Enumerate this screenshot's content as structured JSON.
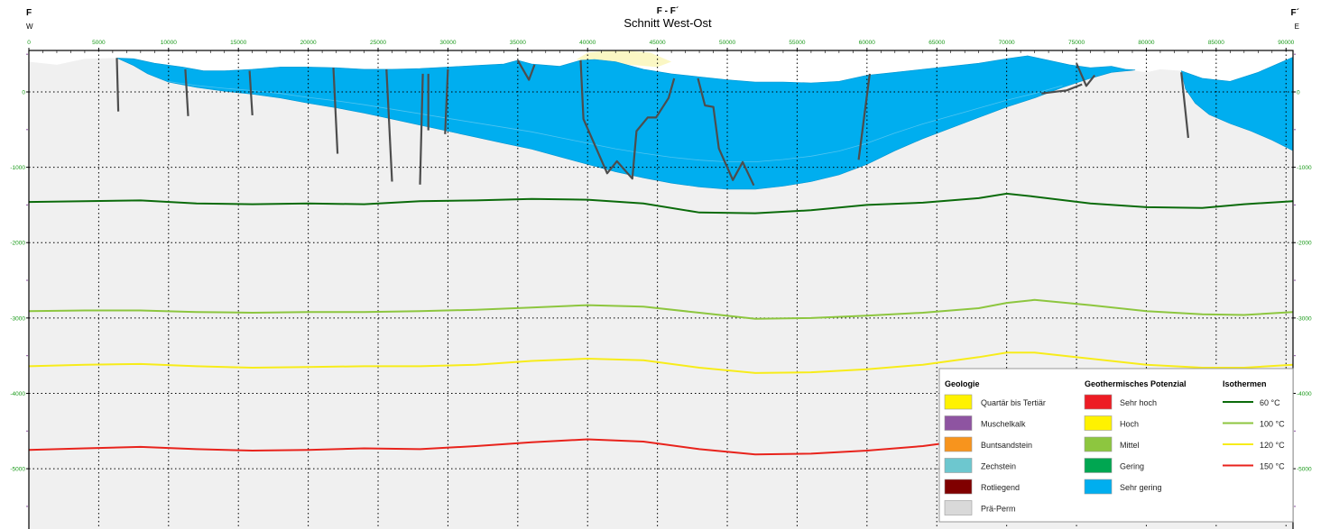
{
  "header": {
    "section_code": "F - F´",
    "title": "Schnitt West-Ost",
    "left_label": "F",
    "left_dir": "W",
    "right_label": "F´",
    "right_dir": "E"
  },
  "axes": {
    "x_ticks": [
      0,
      5000,
      10000,
      15000,
      20000,
      25000,
      30000,
      35000,
      40000,
      45000,
      50000,
      55000,
      60000,
      65000,
      70000,
      75000,
      80000,
      85000,
      90000
    ],
    "y_ticks": [
      0,
      -1000,
      -2000,
      -3000,
      -4000,
      -5000
    ],
    "xlim": [
      0,
      90500
    ],
    "ylim": [
      -5800,
      550
    ]
  },
  "colors": {
    "pre_perm": "#f0f0f0",
    "sehr_gering": "#00aeef",
    "hoch_patch": "#fbf7c4",
    "fault": "#4d4d4d",
    "tick_axis": "#1a9a1a",
    "grid": "#000000"
  },
  "profile": {
    "surface": [
      [
        0,
        400
      ],
      [
        2000,
        360
      ],
      [
        4000,
        440
      ],
      [
        6300,
        450
      ],
      [
        7500,
        440
      ],
      [
        9000,
        380
      ],
      [
        11000,
        330
      ],
      [
        12500,
        280
      ],
      [
        14000,
        280
      ],
      [
        16000,
        300
      ],
      [
        18000,
        330
      ],
      [
        20000,
        330
      ],
      [
        22000,
        320
      ],
      [
        24000,
        300
      ],
      [
        26000,
        300
      ],
      [
        28000,
        310
      ],
      [
        30000,
        330
      ],
      [
        32000,
        350
      ],
      [
        34000,
        370
      ],
      [
        35000,
        420
      ],
      [
        36000,
        370
      ],
      [
        38000,
        340
      ],
      [
        39500,
        420
      ],
      [
        40500,
        430
      ],
      [
        42000,
        400
      ],
      [
        44000,
        300
      ],
      [
        46000,
        240
      ],
      [
        48000,
        200
      ],
      [
        50000,
        160
      ],
      [
        52000,
        130
      ],
      [
        54000,
        130
      ],
      [
        56000,
        120
      ],
      [
        58000,
        140
      ],
      [
        60000,
        220
      ],
      [
        62000,
        260
      ],
      [
        64000,
        300
      ],
      [
        66000,
        340
      ],
      [
        68000,
        380
      ],
      [
        70000,
        440
      ],
      [
        71500,
        480
      ],
      [
        73000,
        420
      ],
      [
        74500,
        360
      ],
      [
        76000,
        320
      ],
      [
        77500,
        340
      ],
      [
        78500,
        300
      ],
      [
        80000,
        260
      ],
      [
        81000,
        300
      ],
      [
        82500,
        280
      ],
      [
        84000,
        180
      ],
      [
        86000,
        140
      ],
      [
        88000,
        260
      ],
      [
        89500,
        380
      ],
      [
        90500,
        460
      ]
    ],
    "sediment_top": [
      [
        6300,
        450
      ],
      [
        7500,
        440
      ],
      [
        9000,
        380
      ],
      [
        11000,
        330
      ],
      [
        12500,
        280
      ],
      [
        14000,
        280
      ],
      [
        16000,
        300
      ],
      [
        18000,
        330
      ],
      [
        20000,
        330
      ],
      [
        22000,
        320
      ],
      [
        24000,
        300
      ],
      [
        26000,
        300
      ],
      [
        28000,
        310
      ],
      [
        30000,
        330
      ],
      [
        32000,
        350
      ],
      [
        34000,
        370
      ],
      [
        35000,
        420
      ],
      [
        36000,
        370
      ],
      [
        38000,
        340
      ],
      [
        39500,
        420
      ],
      [
        40500,
        430
      ],
      [
        42000,
        400
      ],
      [
        44000,
        300
      ],
      [
        46000,
        240
      ],
      [
        48000,
        200
      ],
      [
        50000,
        160
      ],
      [
        52000,
        130
      ],
      [
        54000,
        130
      ],
      [
        56000,
        120
      ],
      [
        58000,
        140
      ],
      [
        60000,
        220
      ],
      [
        62000,
        260
      ],
      [
        64000,
        300
      ],
      [
        66000,
        340
      ],
      [
        68000,
        380
      ],
      [
        70000,
        440
      ],
      [
        71500,
        480
      ],
      [
        73000,
        420
      ],
      [
        74500,
        360
      ],
      [
        76000,
        320
      ],
      [
        77500,
        340
      ],
      [
        78500,
        300
      ],
      [
        79200,
        290
      ]
    ],
    "sediment_base": [
      [
        79200,
        290
      ],
      [
        77500,
        260
      ],
      [
        76000,
        180
      ],
      [
        74000,
        60
      ],
      [
        72000,
        -80
      ],
      [
        70000,
        -200
      ],
      [
        68000,
        -340
      ],
      [
        66000,
        -480
      ],
      [
        64000,
        -620
      ],
      [
        62000,
        -780
      ],
      [
        60000,
        -960
      ],
      [
        58000,
        -1100
      ],
      [
        56000,
        -1190
      ],
      [
        54000,
        -1250
      ],
      [
        52000,
        -1290
      ],
      [
        50000,
        -1290
      ],
      [
        48000,
        -1260
      ],
      [
        46000,
        -1210
      ],
      [
        44000,
        -1140
      ],
      [
        42000,
        -1060
      ],
      [
        40000,
        -960
      ],
      [
        38000,
        -860
      ],
      [
        36000,
        -760
      ],
      [
        34000,
        -680
      ],
      [
        32000,
        -600
      ],
      [
        30000,
        -520
      ],
      [
        28000,
        -440
      ],
      [
        26000,
        -360
      ],
      [
        24000,
        -280
      ],
      [
        22000,
        -210
      ],
      [
        20000,
        -150
      ],
      [
        18000,
        -80
      ],
      [
        16000,
        -30
      ],
      [
        14000,
        10
      ],
      [
        12000,
        60
      ],
      [
        10000,
        130
      ],
      [
        8500,
        240
      ],
      [
        7500,
        350
      ],
      [
        6300,
        450
      ]
    ],
    "east_top": [
      [
        82500,
        280
      ],
      [
        84000,
        180
      ],
      [
        86000,
        140
      ],
      [
        88000,
        260
      ],
      [
        89500,
        380
      ],
      [
        90500,
        460
      ]
    ],
    "east_base": [
      [
        90500,
        -780
      ],
      [
        89000,
        -640
      ],
      [
        87500,
        -520
      ],
      [
        86000,
        -420
      ],
      [
        84500,
        -300
      ],
      [
        83500,
        -150
      ],
      [
        82800,
        40
      ],
      [
        82500,
        280
      ]
    ],
    "hoch_patch": [
      [
        39200,
        430
      ],
      [
        40000,
        520
      ],
      [
        42000,
        560
      ],
      [
        44500,
        520
      ],
      [
        46000,
        400
      ],
      [
        45000,
        330
      ],
      [
        43000,
        360
      ],
      [
        41000,
        400
      ],
      [
        39200,
        430
      ]
    ],
    "isotherms": [
      {
        "temp": "60 °C",
        "color": "#0b6b0b",
        "y": [
          -1460,
          -1450,
          -1440,
          -1480,
          -1490,
          -1480,
          -1490,
          -1450,
          -1440,
          -1420,
          -1430,
          -1480,
          -1600,
          -1610,
          -1570,
          -1500,
          -1470,
          -1410,
          -1350,
          -1390,
          -1480,
          -1530,
          -1540,
          -1490,
          -1450
        ]
      },
      {
        "temp": "100 °C",
        "color": "#8dc63f",
        "y": [
          -2910,
          -2900,
          -2900,
          -2920,
          -2930,
          -2920,
          -2920,
          -2910,
          -2890,
          -2860,
          -2830,
          -2850,
          -2930,
          -3010,
          -3000,
          -2970,
          -2930,
          -2870,
          -2800,
          -2760,
          -2830,
          -2910,
          -2950,
          -2960,
          -2920
        ]
      },
      {
        "temp": "120 °C",
        "color": "#f7ec1a",
        "y": [
          -3640,
          -3620,
          -3610,
          -3640,
          -3660,
          -3650,
          -3640,
          -3640,
          -3620,
          -3570,
          -3540,
          -3560,
          -3660,
          -3730,
          -3720,
          -3680,
          -3620,
          -3520,
          -3460,
          -3460,
          -3540,
          -3620,
          -3660,
          -3660,
          -3620
        ]
      },
      {
        "temp": "150 °C",
        "color": "#e8231c",
        "y": [
          -4750,
          -4730,
          -4710,
          -4740,
          -4760,
          -4750,
          -4730,
          -4740,
          -4700,
          -4650,
          -4610,
          -4640,
          -4740,
          -4810,
          -4800,
          -4760,
          -4700,
          -4600,
          -4550,
          -4540,
          -4600,
          -4690,
          -4720,
          -4720,
          -4690
        ]
      }
    ],
    "isotherm_x": [
      0,
      4000,
      8000,
      12000,
      16000,
      20000,
      24000,
      28000,
      32000,
      36000,
      40000,
      44000,
      48000,
      52000,
      56000,
      60000,
      64000,
      68000,
      70000,
      72000,
      76000,
      80000,
      84000,
      87000,
      90500
    ],
    "faults": [
      [
        [
          6300,
          450
        ],
        [
          6400,
          -260
        ]
      ],
      [
        [
          11200,
          300
        ],
        [
          11400,
          -320
        ]
      ],
      [
        [
          15800,
          280
        ],
        [
          16000,
          -310
        ]
      ],
      [
        [
          21800,
          320
        ],
        [
          22100,
          -820
        ]
      ],
      [
        [
          25600,
          300
        ],
        [
          26000,
          -1190
        ]
      ],
      [
        [
          28200,
          240
        ],
        [
          28000,
          -1230
        ]
      ],
      [
        [
          28600,
          240
        ],
        [
          28600,
          -510
        ]
      ],
      [
        [
          30000,
          300
        ],
        [
          29800,
          -560
        ]
      ],
      [
        [
          35000,
          420
        ],
        [
          35800,
          160
        ],
        [
          36200,
          360
        ]
      ],
      [
        [
          39500,
          420
        ],
        [
          39700,
          -360
        ],
        [
          41400,
          -1080
        ],
        [
          42100,
          -920
        ],
        [
          43200,
          -1150
        ],
        [
          43500,
          -520
        ],
        [
          44300,
          -340
        ],
        [
          44900,
          -340
        ],
        [
          45800,
          -80
        ],
        [
          46200,
          180
        ]
      ],
      [
        [
          47900,
          180
        ],
        [
          48400,
          -180
        ],
        [
          49000,
          -200
        ],
        [
          49400,
          -750
        ],
        [
          50400,
          -1170
        ],
        [
          51100,
          -930
        ],
        [
          51900,
          -1240
        ]
      ],
      [
        [
          60200,
          240
        ],
        [
          59400,
          -900
        ]
      ],
      [
        [
          72500,
          -20
        ],
        [
          74300,
          20
        ],
        [
          75400,
          100
        ]
      ],
      [
        [
          75000,
          380
        ],
        [
          75700,
          80
        ],
        [
          76300,
          220
        ]
      ],
      [
        [
          82500,
          260
        ],
        [
          83000,
          -610
        ]
      ]
    ]
  },
  "legend": {
    "geologie_title": "Geologie",
    "potenzial_title": "Geothermisches Potenzial",
    "isothermen_title": "Isothermen",
    "geologie": [
      {
        "label": "Quartär bis Tertiär",
        "color": "#fff200"
      },
      {
        "label": "Muschelkalk",
        "color": "#8e54a1"
      },
      {
        "label": "Buntsandstein",
        "color": "#f7941d"
      },
      {
        "label": "Zechstein",
        "color": "#6dc7cf"
      },
      {
        "label": "Rotliegend",
        "color": "#800000"
      },
      {
        "label": "Prä-Perm",
        "color": "#d9d9d9"
      }
    ],
    "potenzial": [
      {
        "label": "Sehr hoch",
        "color": "#ed1c24"
      },
      {
        "label": "Hoch",
        "color": "#fff200"
      },
      {
        "label": "Mittel",
        "color": "#8dc63f"
      },
      {
        "label": "Gering",
        "color": "#00a651"
      },
      {
        "label": "Sehr gering",
        "color": "#00aeef"
      }
    ],
    "isothermen": [
      {
        "label": "60 °C",
        "color": "#0b6b0b"
      },
      {
        "label": "100 °C",
        "color": "#8dc63f"
      },
      {
        "label": "120 °C",
        "color": "#f7ec1a"
      },
      {
        "label": "150 °C",
        "color": "#e8231c"
      }
    ]
  }
}
